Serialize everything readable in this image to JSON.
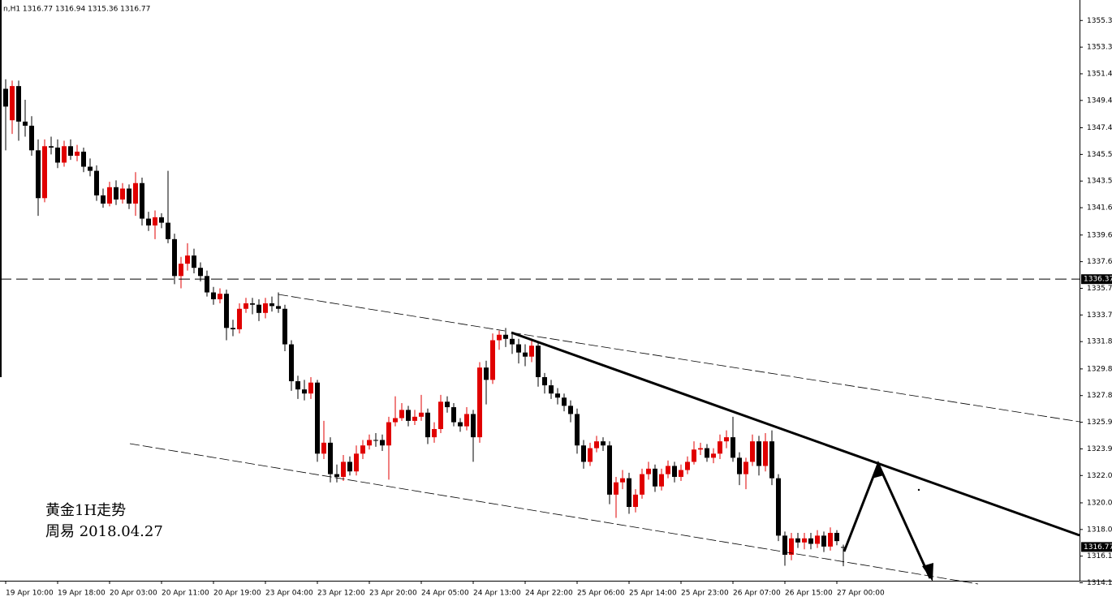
{
  "chart_data": {
    "type": "candlestick",
    "header": "n,H1  1316.77 1316.94 1315.36 1316.77",
    "annotations": [
      "黄金1H走势",
      "周易 2018.04.27"
    ],
    "up_color": "#e00000",
    "down_color": "#000000",
    "hline": {
      "value": 1336.37,
      "label": "1336.37"
    },
    "last_price": {
      "value": 1316.77,
      "label": "1316.77"
    },
    "ylim": [
      1314.3,
      1356.8
    ],
    "yticks": [
      {
        "value": 1355.3,
        "label": "1355.30"
      },
      {
        "value": 1353.35,
        "label": "1353.35"
      },
      {
        "value": 1351.4,
        "label": "1351.40"
      },
      {
        "value": 1349.45,
        "label": "1349.45"
      },
      {
        "value": 1347.45,
        "label": "1347.45"
      },
      {
        "value": 1345.5,
        "label": "1345.50"
      },
      {
        "value": 1343.55,
        "label": "1343.55"
      },
      {
        "value": 1341.6,
        "label": "1341.60"
      },
      {
        "value": 1339.6,
        "label": "1339.60"
      },
      {
        "value": 1337.65,
        "label": "1337.65"
      },
      {
        "value": 1335.7,
        "label": "1335.70"
      },
      {
        "value": 1333.75,
        "label": "1333.75"
      },
      {
        "value": 1331.8,
        "label": "1331.80"
      },
      {
        "value": 1329.8,
        "label": "1329.80"
      },
      {
        "value": 1327.85,
        "label": "1327.85"
      },
      {
        "value": 1325.9,
        "label": "1325.90"
      },
      {
        "value": 1323.95,
        "label": "1323.95"
      },
      {
        "value": 1322,
        "label": "1322.00"
      },
      {
        "value": 1320,
        "label": "1320.00"
      },
      {
        "value": 1318.05,
        "label": "1318.05"
      },
      {
        "value": 1316.1,
        "label": "1316.10"
      },
      {
        "value": 1314.15,
        "label": "1314.15"
      }
    ],
    "categories": [
      "19 Apr 10:00",
      null,
      null,
      null,
      null,
      null,
      null,
      null,
      "19 Apr 18:00",
      null,
      null,
      null,
      null,
      null,
      null,
      null,
      "20 Apr 03:00",
      null,
      null,
      null,
      null,
      null,
      null,
      null,
      "20 Apr 11:00",
      null,
      null,
      null,
      null,
      null,
      null,
      null,
      "20 Apr 19:00",
      null,
      null,
      null,
      null,
      null,
      null,
      null,
      "23 Apr 04:00",
      null,
      null,
      null,
      null,
      null,
      null,
      null,
      "23 Apr 12:00",
      null,
      null,
      null,
      null,
      null,
      null,
      null,
      "23 Apr 20:00",
      null,
      null,
      null,
      null,
      null,
      null,
      null,
      "24 Apr 05:00",
      null,
      null,
      null,
      null,
      null,
      null,
      null,
      "24 Apr 13:00",
      null,
      null,
      null,
      null,
      null,
      null,
      null,
      "24 Apr 22:00",
      null,
      null,
      null,
      null,
      null,
      null,
      null,
      "25 Apr 06:00",
      null,
      null,
      null,
      null,
      null,
      null,
      null,
      "25 Apr 14:00",
      null,
      null,
      null,
      null,
      null,
      null,
      null,
      "25 Apr 23:00",
      null,
      null,
      null,
      null,
      null,
      null,
      null,
      "26 Apr 07:00",
      null,
      null,
      null,
      null,
      null,
      null,
      null,
      "26 Apr 15:00",
      null,
      null,
      null,
      null,
      null,
      null,
      null,
      "27 Apr 00:00",
      null
    ],
    "candles": [
      [
        1350.3,
        1351.0,
        1345.8,
        1349.0
      ],
      [
        1348.0,
        1350.9,
        1347.0,
        1350.5
      ],
      [
        1350.5,
        1350.9,
        1346.5,
        1347.9
      ],
      [
        1347.9,
        1349.5,
        1346.8,
        1347.6
      ],
      [
        1347.6,
        1348.3,
        1345.4,
        1345.8
      ],
      [
        1345.8,
        1346.6,
        1341.0,
        1342.3
      ],
      [
        1342.3,
        1346.6,
        1342.0,
        1346.1
      ],
      [
        1346.1,
        1346.8,
        1345.5,
        1346.0
      ],
      [
        1346.0,
        1346.6,
        1344.5,
        1344.9
      ],
      [
        1344.9,
        1346.5,
        1344.6,
        1346.1
      ],
      [
        1346.1,
        1346.6,
        1345.1,
        1345.4
      ],
      [
        1345.4,
        1346.2,
        1345.0,
        1345.7
      ],
      [
        1345.7,
        1346.0,
        1344.2,
        1344.6
      ],
      [
        1344.6,
        1345.2,
        1343.9,
        1344.3
      ],
      [
        1344.3,
        1344.7,
        1342.1,
        1342.5
      ],
      [
        1342.5,
        1343.0,
        1341.6,
        1341.9
      ],
      [
        1341.9,
        1343.5,
        1341.7,
        1343.1
      ],
      [
        1343.1,
        1343.6,
        1341.8,
        1342.2
      ],
      [
        1342.2,
        1343.4,
        1341.9,
        1343.0
      ],
      [
        1343.0,
        1343.3,
        1341.5,
        1341.9
      ],
      [
        1341.9,
        1344.2,
        1341.0,
        1343.4
      ],
      [
        1343.4,
        1343.8,
        1340.3,
        1340.8
      ],
      [
        1340.8,
        1341.3,
        1339.9,
        1340.3
      ],
      [
        1340.3,
        1341.4,
        1339.3,
        1340.9
      ],
      [
        1340.9,
        1341.2,
        1340.1,
        1340.5
      ],
      [
        1340.5,
        1344.3,
        1339.0,
        1339.3
      ],
      [
        1339.3,
        1339.7,
        1336.0,
        1336.6
      ],
      [
        1336.6,
        1338.0,
        1335.7,
        1337.5
      ],
      [
        1337.5,
        1339.0,
        1337.0,
        1338.1
      ],
      [
        1338.1,
        1338.6,
        1336.8,
        1337.2
      ],
      [
        1337.2,
        1337.6,
        1336.2,
        1336.6
      ],
      [
        1336.6,
        1337.0,
        1335.1,
        1335.4
      ],
      [
        1335.4,
        1335.8,
        1334.5,
        1334.9
      ],
      [
        1334.9,
        1335.7,
        1334.6,
        1335.3
      ],
      [
        1335.3,
        1335.6,
        1331.9,
        1332.8
      ],
      [
        1332.8,
        1333.4,
        1332.2,
        1332.7
      ],
      [
        1332.7,
        1334.6,
        1332.4,
        1334.2
      ],
      [
        1334.2,
        1335.0,
        1333.9,
        1334.6
      ],
      [
        1334.6,
        1335.0,
        1333.8,
        1334.5
      ],
      [
        1334.5,
        1334.9,
        1333.3,
        1333.9
      ],
      [
        1333.9,
        1335.0,
        1333.5,
        1334.6
      ],
      [
        1334.6,
        1335.1,
        1334.0,
        1334.4
      ],
      [
        1334.4,
        1335.4,
        1333.9,
        1334.2
      ],
      [
        1334.2,
        1334.5,
        1331.1,
        1331.6
      ],
      [
        1331.6,
        1331.9,
        1328.2,
        1328.9
      ],
      [
        1328.9,
        1329.3,
        1327.6,
        1328.3
      ],
      [
        1328.3,
        1329.0,
        1327.5,
        1328.0
      ],
      [
        1328.0,
        1329.2,
        1327.6,
        1328.8
      ],
      [
        1328.8,
        1329.0,
        1323.0,
        1323.6
      ],
      [
        1323.6,
        1326.0,
        1323.2,
        1324.4
      ],
      [
        1324.4,
        1324.8,
        1321.5,
        1322.1
      ],
      [
        1322.1,
        1322.8,
        1321.5,
        1321.9
      ],
      [
        1321.9,
        1323.5,
        1321.6,
        1323.0
      ],
      [
        1323.0,
        1323.4,
        1322.0,
        1322.3
      ],
      [
        1322.3,
        1324.2,
        1322.0,
        1323.6
      ],
      [
        1323.6,
        1324.6,
        1323.2,
        1324.2
      ],
      [
        1324.2,
        1325.0,
        1323.9,
        1324.6
      ],
      [
        1324.6,
        1325.1,
        1324.1,
        1324.6
      ],
      [
        1324.6,
        1325.0,
        1323.8,
        1324.2
      ],
      [
        1324.2,
        1326.3,
        1321.7,
        1325.9
      ],
      [
        1325.9,
        1327.8,
        1325.6,
        1326.2
      ],
      [
        1326.2,
        1327.3,
        1326.0,
        1326.8
      ],
      [
        1326.8,
        1327.1,
        1325.6,
        1326.0
      ],
      [
        1326.0,
        1326.8,
        1325.7,
        1326.3
      ],
      [
        1326.3,
        1327.9,
        1326.0,
        1326.6
      ],
      [
        1326.6,
        1326.9,
        1324.3,
        1324.8
      ],
      [
        1324.8,
        1325.9,
        1324.4,
        1325.4
      ],
      [
        1325.4,
        1327.9,
        1325.1,
        1327.4
      ],
      [
        1327.4,
        1327.8,
        1326.6,
        1327.0
      ],
      [
        1327.0,
        1327.3,
        1325.6,
        1325.9
      ],
      [
        1325.9,
        1326.2,
        1325.2,
        1325.6
      ],
      [
        1325.6,
        1327.0,
        1325.3,
        1326.5
      ],
      [
        1326.5,
        1326.8,
        1323.0,
        1324.8
      ],
      [
        1324.8,
        1330.3,
        1324.4,
        1329.9
      ],
      [
        1329.9,
        1330.4,
        1327.2,
        1329.0
      ],
      [
        1329.0,
        1332.4,
        1328.7,
        1331.9
      ],
      [
        1331.9,
        1332.6,
        1331.2,
        1332.3
      ],
      [
        1332.3,
        1332.8,
        1331.4,
        1332.0
      ],
      [
        1332.0,
        1332.4,
        1330.9,
        1331.6
      ],
      [
        1331.6,
        1332.0,
        1330.2,
        1331.0
      ],
      [
        1331.0,
        1331.6,
        1330.0,
        1330.7
      ],
      [
        1330.7,
        1332.0,
        1330.3,
        1331.5
      ],
      [
        1331.5,
        1331.8,
        1328.5,
        1329.2
      ],
      [
        1329.2,
        1329.5,
        1328.0,
        1328.6
      ],
      [
        1328.6,
        1329.0,
        1327.6,
        1328.0
      ],
      [
        1328.0,
        1328.4,
        1327.2,
        1327.7
      ],
      [
        1327.7,
        1328.0,
        1326.7,
        1327.1
      ],
      [
        1327.1,
        1327.5,
        1325.9,
        1326.5
      ],
      [
        1326.5,
        1326.9,
        1323.6,
        1324.2
      ],
      [
        1324.2,
        1324.6,
        1322.5,
        1323.0
      ],
      [
        1323.0,
        1324.4,
        1322.7,
        1324.0
      ],
      [
        1324.0,
        1324.9,
        1323.7,
        1324.5
      ],
      [
        1324.5,
        1324.8,
        1323.8,
        1324.2
      ],
      [
        1324.2,
        1324.5,
        1319.9,
        1320.6
      ],
      [
        1320.6,
        1321.9,
        1318.9,
        1321.5
      ],
      [
        1321.5,
        1322.4,
        1321.0,
        1321.8
      ],
      [
        1321.8,
        1322.2,
        1319.2,
        1319.7
      ],
      [
        1319.7,
        1321.0,
        1319.3,
        1320.6
      ],
      [
        1320.6,
        1322.5,
        1320.3,
        1322.1
      ],
      [
        1322.1,
        1323.0,
        1321.7,
        1322.5
      ],
      [
        1322.5,
        1322.8,
        1320.8,
        1321.2
      ],
      [
        1321.2,
        1322.5,
        1320.9,
        1322.1
      ],
      [
        1322.1,
        1323.1,
        1321.8,
        1322.7
      ],
      [
        1322.7,
        1323.0,
        1321.5,
        1321.9
      ],
      [
        1321.9,
        1322.8,
        1321.6,
        1322.4
      ],
      [
        1322.4,
        1323.4,
        1322.1,
        1323.0
      ],
      [
        1323.0,
        1324.5,
        1322.8,
        1323.9
      ],
      [
        1323.9,
        1324.4,
        1323.5,
        1324.0
      ],
      [
        1324.0,
        1324.3,
        1323.0,
        1323.3
      ],
      [
        1323.3,
        1324.0,
        1322.9,
        1323.6
      ],
      [
        1323.6,
        1325.0,
        1323.2,
        1324.5
      ],
      [
        1324.5,
        1325.3,
        1324.0,
        1324.8
      ],
      [
        1324.8,
        1326.3,
        1323.0,
        1323.3
      ],
      [
        1323.3,
        1323.7,
        1321.3,
        1322.1
      ],
      [
        1322.1,
        1323.3,
        1321.0,
        1323.0
      ],
      [
        1323.0,
        1325.0,
        1322.7,
        1324.5
      ],
      [
        1324.5,
        1324.9,
        1322.0,
        1322.7
      ],
      [
        1322.7,
        1325.1,
        1322.3,
        1324.5
      ],
      [
        1324.5,
        1325.3,
        1321.3,
        1321.8
      ],
      [
        1321.8,
        1322.1,
        1317.2,
        1317.6
      ],
      [
        1317.6,
        1317.9,
        1315.4,
        1316.2
      ],
      [
        1316.2,
        1317.8,
        1315.8,
        1317.4
      ],
      [
        1317.4,
        1317.8,
        1316.7,
        1317.1
      ],
      [
        1317.1,
        1317.8,
        1316.6,
        1317.4
      ],
      [
        1317.4,
        1317.8,
        1316.6,
        1317.0
      ],
      [
        1317.0,
        1318.0,
        1316.7,
        1317.6
      ],
      [
        1317.6,
        1317.9,
        1316.4,
        1316.8
      ],
      [
        1316.8,
        1318.2,
        1316.5,
        1317.8
      ],
      [
        1317.8,
        1318.0,
        1316.9,
        1317.2
      ],
      [
        1316.77,
        1316.94,
        1315.36,
        1316.77
      ]
    ]
  }
}
